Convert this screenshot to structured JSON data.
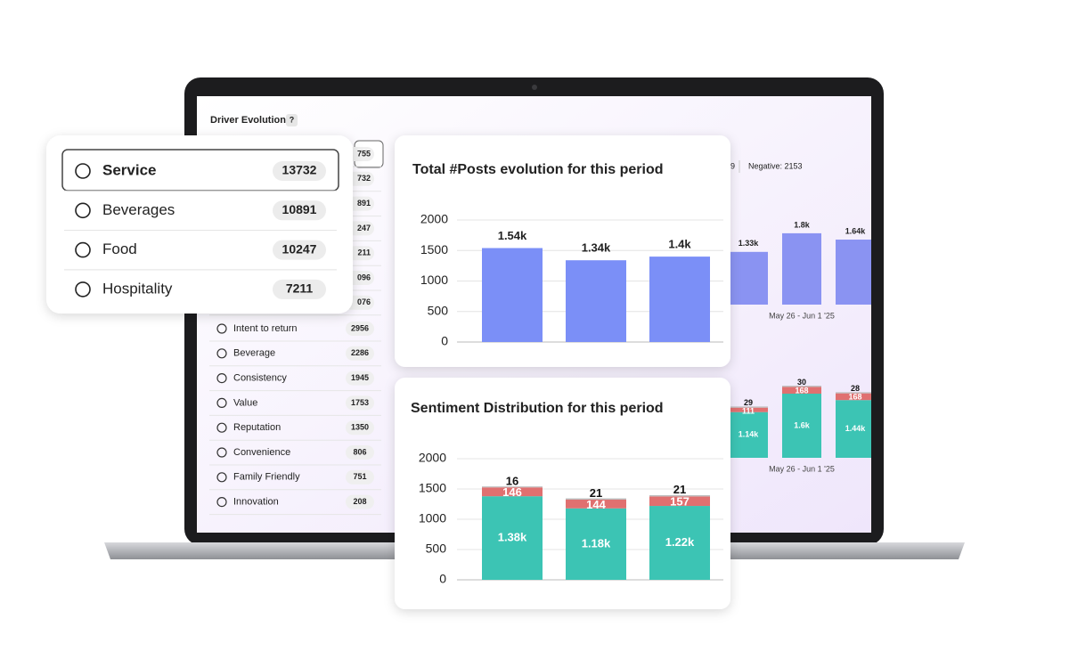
{
  "header": {
    "title": "Driver Evolution",
    "help": "?"
  },
  "popup_drivers": [
    {
      "name": "Service",
      "count": 13732
    },
    {
      "name": "Beverages",
      "count": 10891
    },
    {
      "name": "Food",
      "count": 10247
    },
    {
      "name": "Hospitality",
      "count": 7211
    }
  ],
  "driver_list": {
    "hidden_counts": [
      "755",
      "732",
      "891",
      "247",
      "211",
      "096",
      "076"
    ],
    "rows": [
      {
        "name": "Intent to return",
        "count": 2956
      },
      {
        "name": "Beverage",
        "count": 2286
      },
      {
        "name": "Consistency",
        "count": 1945
      },
      {
        "name": "Value",
        "count": 1753
      },
      {
        "name": "Reputation",
        "count": 1350
      },
      {
        "name": "Convenience",
        "count": 806
      },
      {
        "name": "Family Friendly",
        "count": 751
      },
      {
        "name": "Innovation",
        "count": 208
      }
    ]
  },
  "summary": {
    "fragment": "9",
    "negative": "Negative: 2153"
  },
  "background_posts": {
    "type": "bar",
    "ylim": [
      0,
      2000
    ],
    "values": [
      1330,
      1800,
      1640
    ],
    "value_labels": [
      "1.33k",
      "1.8k",
      "1.64k"
    ],
    "color": "#8a93f2",
    "x_label": "May 26 - Jun 1 '25"
  },
  "background_sentiment": {
    "type": "stacked_bar",
    "ylim": [
      0,
      2000
    ],
    "x_label": "May 26 - Jun 1 '25",
    "series": [
      {
        "color": "#3cc4b4",
        "values": [
          1140,
          1600,
          1440
        ],
        "value_labels": [
          "1.14k",
          "1.6k",
          "1.44k"
        ]
      },
      {
        "color": "#e07070",
        "values": [
          111,
          168,
          168
        ]
      },
      {
        "color": "#bdbdbd",
        "values": [
          29,
          30,
          28
        ]
      }
    ]
  },
  "posts_chart": {
    "type": "bar",
    "title": "Total #Posts evolution for this period",
    "ylim": [
      0,
      2000
    ],
    "yticks": [
      0,
      500,
      1000,
      1500,
      2000
    ],
    "grid": true,
    "values": [
      1540,
      1340,
      1400
    ],
    "value_labels": [
      "1.54k",
      "1.34k",
      "1.4k"
    ],
    "color": "#7b8ff7"
  },
  "sentiment_chart": {
    "type": "stacked_bar",
    "title": "Sentiment Distribution for this period",
    "ylim": [
      0,
      2000
    ],
    "yticks": [
      0,
      500,
      1000,
      1500,
      2000
    ],
    "grid": true,
    "series": [
      {
        "color": "#3cc4b4",
        "values": [
          1380,
          1180,
          1220
        ],
        "value_labels": [
          "1.38k",
          "1.18k",
          "1.22k"
        ]
      },
      {
        "color": "#e07070",
        "values": [
          146,
          144,
          157
        ]
      },
      {
        "color": "#bdbdbd",
        "values": [
          16,
          21,
          21
        ]
      }
    ]
  }
}
